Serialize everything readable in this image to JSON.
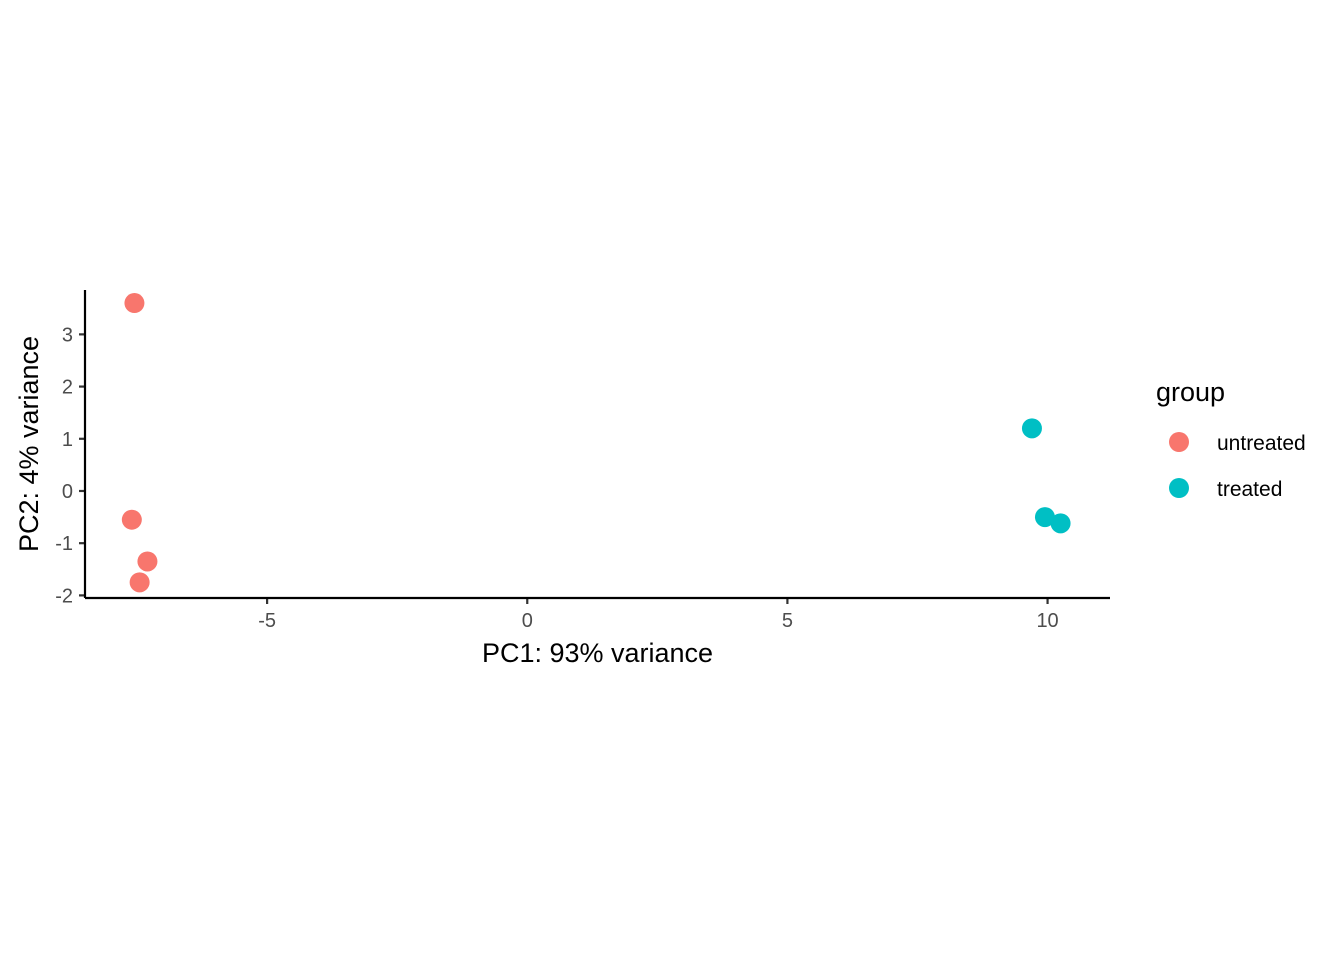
{
  "chart_data": {
    "type": "scatter",
    "title": "",
    "xlabel": "PC1: 93% variance",
    "ylabel": "PC2: 4% variance",
    "xlim": [
      -8.5,
      11.2
    ],
    "ylim": [
      -2.05,
      3.85
    ],
    "xticks": [
      -5,
      0,
      5,
      10
    ],
    "yticks": [
      -2,
      -1,
      0,
      1,
      2,
      3
    ],
    "grid": false,
    "legend": {
      "title": "group",
      "placement": "right"
    },
    "series": [
      {
        "name": "untreated",
        "color": "#F8766D",
        "points": [
          {
            "x": -7.55,
            "y": 3.6
          },
          {
            "x": -7.6,
            "y": -0.55
          },
          {
            "x": -7.3,
            "y": -1.35
          },
          {
            "x": -7.45,
            "y": -1.75
          }
        ]
      },
      {
        "name": "treated",
        "color": "#00BFC4",
        "points": [
          {
            "x": 9.7,
            "y": 1.2
          },
          {
            "x": 9.95,
            "y": -0.5
          },
          {
            "x": 10.25,
            "y": -0.62
          }
        ]
      }
    ]
  }
}
